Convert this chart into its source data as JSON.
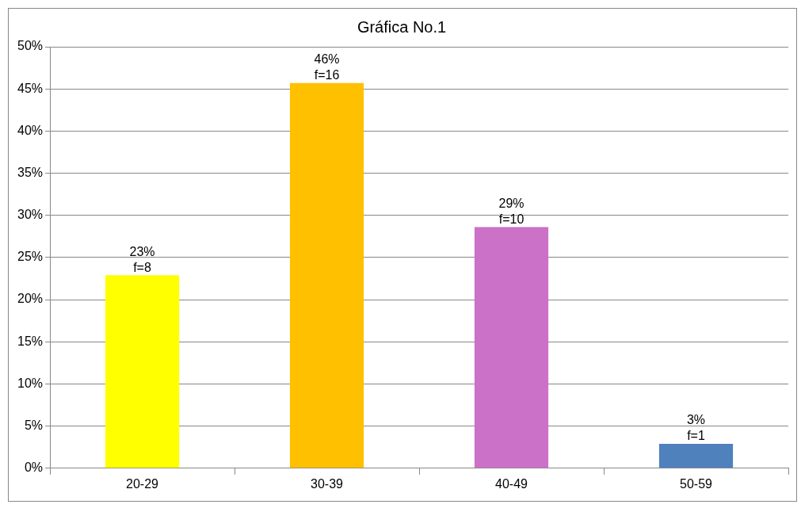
{
  "chart_data": {
    "type": "bar",
    "title": "Gráfica No.1",
    "categories": [
      "20-29",
      "30-39",
      "40-49",
      "50-59"
    ],
    "values": [
      22.9,
      45.7,
      28.6,
      2.9
    ],
    "colors": [
      "#ffff00",
      "#ffc000",
      "#cc71c8",
      "#4f81bd"
    ],
    "value_labels": [
      "23%\nf=8",
      "46%\nf=16",
      "29%\nf=10",
      "3%\nf=1"
    ],
    "ylim": [
      0,
      50
    ],
    "yticks": [
      {
        "value": 0,
        "label": "0%"
      },
      {
        "value": 5,
        "label": "5%"
      },
      {
        "value": 10,
        "label": "10%"
      },
      {
        "value": 15,
        "label": "15%"
      },
      {
        "value": 20,
        "label": "20%"
      },
      {
        "value": 25,
        "label": "25%"
      },
      {
        "value": 30,
        "label": "30%"
      },
      {
        "value": 35,
        "label": "35%"
      },
      {
        "value": 40,
        "label": "40%"
      },
      {
        "value": 45,
        "label": "45%"
      },
      {
        "value": 50,
        "label": "50%"
      }
    ],
    "grid": "y",
    "legend": false
  }
}
